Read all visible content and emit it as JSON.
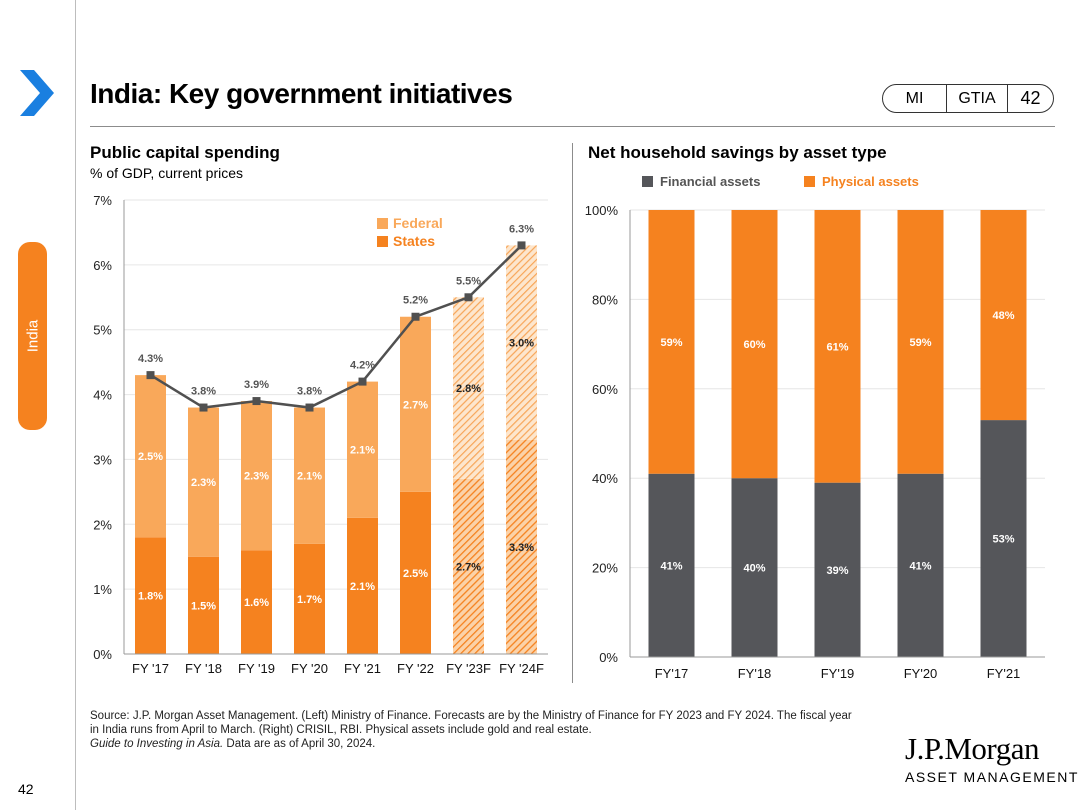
{
  "header": {
    "title": "India: Key government initiatives",
    "tags": [
      "MI",
      "GTIA",
      "42"
    ]
  },
  "sidebar": {
    "tab_label": "India",
    "page_number": "42"
  },
  "colors": {
    "accent": "#f5821f",
    "federal": "#f9a85a",
    "states": "#f5821f",
    "financial": "#55565a",
    "physical": "#f5821f",
    "line": "#505050"
  },
  "chart_data": [
    {
      "type": "bar",
      "stacked": true,
      "title": "Public capital spending",
      "subtitle": "% of GDP, current prices",
      "categories": [
        "FY '17",
        "FY '18",
        "FY '19",
        "FY '20",
        "FY '21",
        "FY '22",
        "FY '23F",
        "FY '24F"
      ],
      "forecast": [
        false,
        false,
        false,
        false,
        false,
        false,
        true,
        true
      ],
      "series": [
        {
          "name": "States",
          "values": [
            1.8,
            1.5,
            1.6,
            1.7,
            2.1,
            2.5,
            2.7,
            3.3
          ],
          "labels": [
            "1.8%",
            "1.5%",
            "1.6%",
            "1.7%",
            "2.1%",
            "2.5%",
            "2.7%",
            "3.3%"
          ]
        },
        {
          "name": "Federal",
          "values": [
            2.5,
            2.3,
            2.3,
            2.1,
            2.1,
            2.7,
            2.8,
            3.0
          ],
          "labels": [
            "2.5%",
            "2.3%",
            "2.3%",
            "2.1%",
            "2.1%",
            "2.7%",
            "2.8%",
            "3.0%"
          ]
        }
      ],
      "totals": {
        "name": "Total",
        "values": [
          4.3,
          3.8,
          3.9,
          3.8,
          4.2,
          5.2,
          5.5,
          6.3
        ],
        "labels": [
          "4.3%",
          "3.8%",
          "3.9%",
          "3.8%",
          "4.2%",
          "5.2%",
          "5.5%",
          "6.3%"
        ]
      },
      "yticks": [
        "0%",
        "1%",
        "2%",
        "3%",
        "4%",
        "5%",
        "6%",
        "7%"
      ],
      "ylim": [
        0,
        7
      ],
      "legend": [
        "Federal",
        "States"
      ]
    },
    {
      "type": "bar",
      "stacked": true,
      "title": "Net household savings by asset type",
      "categories": [
        "FY'17",
        "FY'18",
        "FY'19",
        "FY'20",
        "FY'21"
      ],
      "series": [
        {
          "name": "Financial assets",
          "values": [
            41,
            40,
            39,
            41,
            53
          ],
          "labels": [
            "41%",
            "40%",
            "39%",
            "41%",
            "53%"
          ]
        },
        {
          "name": "Physical assets",
          "values": [
            59,
            60,
            61,
            59,
            48
          ],
          "labels": [
            "59%",
            "60%",
            "61%",
            "59%",
            "48%"
          ]
        }
      ],
      "yticks": [
        "0%",
        "20%",
        "40%",
        "60%",
        "80%",
        "100%"
      ],
      "ylim": [
        0,
        100
      ],
      "legend": [
        "Financial assets",
        "Physical assets"
      ]
    }
  ],
  "footer": {
    "source_line1": "Source: J.P. Morgan Asset Management. (Left) Ministry of Finance. Forecasts are by the Ministry of Finance for FY 2023 and FY 2024. The fiscal year",
    "source_line2": "in India runs from April to March. (Right) CRISIL, RBI. Physical assets include gold and real estate.",
    "guide": "Guide to Investing in Asia.",
    "date": " Data are as of April 30, 2024.",
    "logo_line1": "J.P.Morgan",
    "logo_line2": "ASSET MANAGEMENT"
  }
}
